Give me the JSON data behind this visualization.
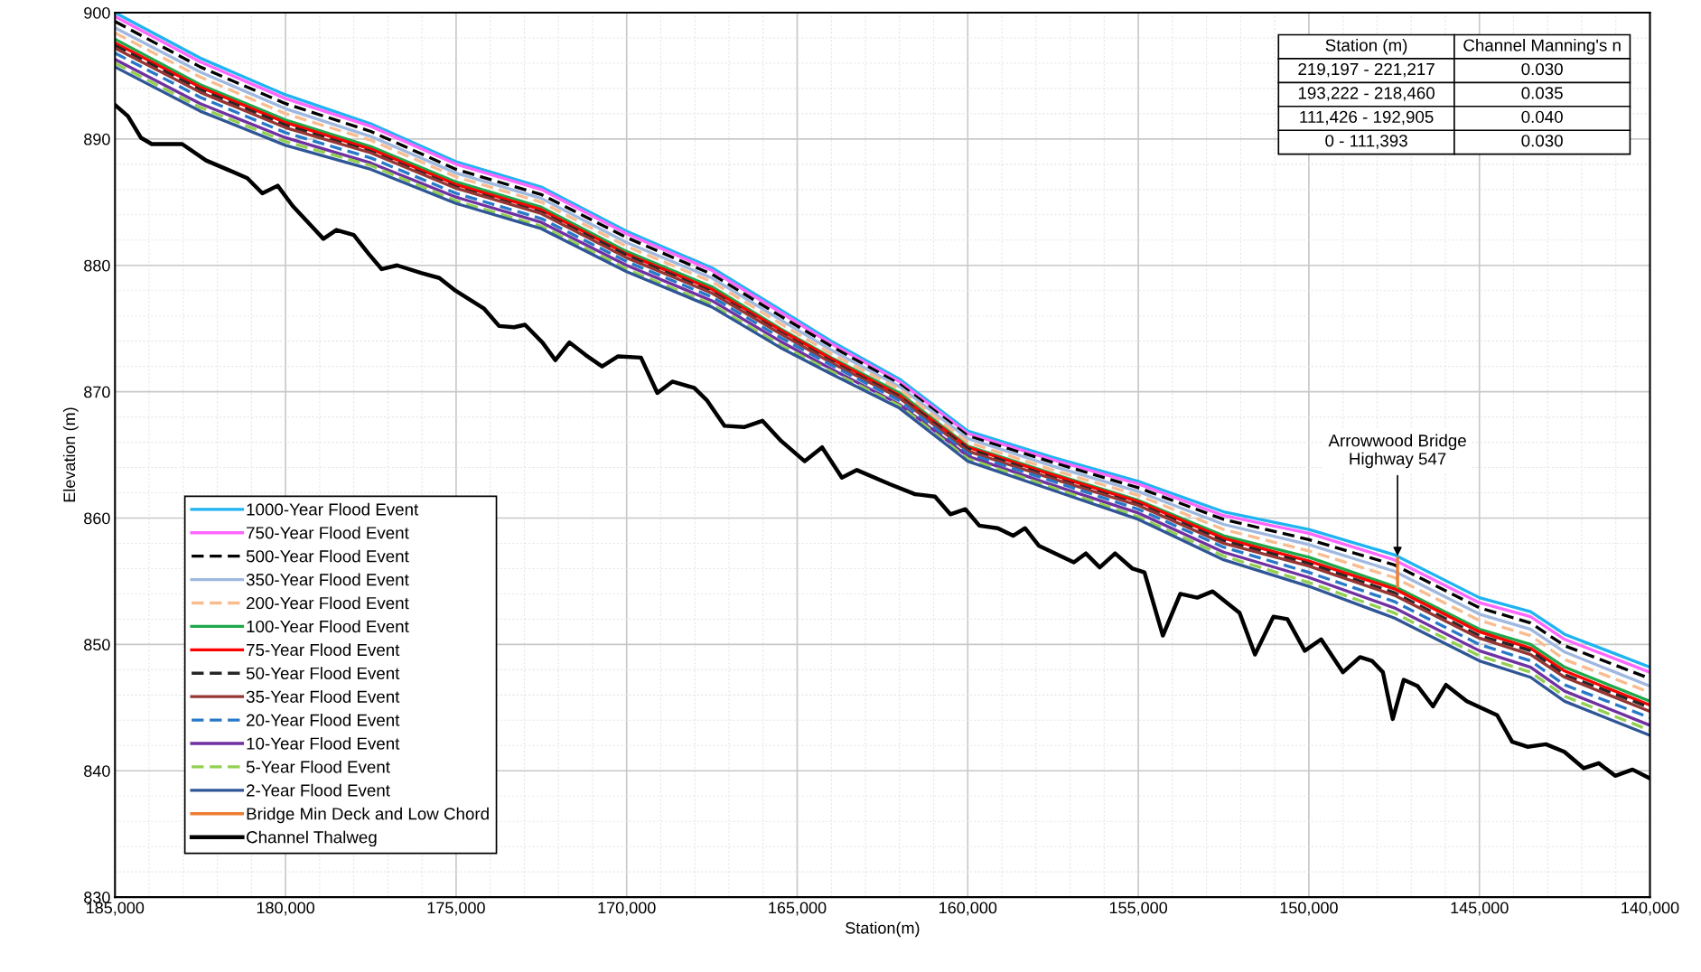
{
  "chart_data": {
    "type": "line",
    "xlabel": "Station(m)",
    "ylabel": "Elevation (m)",
    "xlim": [
      185000,
      140000
    ],
    "ylim": [
      830,
      900
    ],
    "xticks": [
      {
        "value": 185000,
        "label": "185,000"
      },
      {
        "value": 180000,
        "label": "180,000"
      },
      {
        "value": 175000,
        "label": "175,000"
      },
      {
        "value": 170000,
        "label": "170,000"
      },
      {
        "value": 165000,
        "label": "165,000"
      },
      {
        "value": 160000,
        "label": "160,000"
      },
      {
        "value": 155000,
        "label": "155,000"
      },
      {
        "value": 150000,
        "label": "150,000"
      },
      {
        "value": 145000,
        "label": "145,000"
      },
      {
        "value": 140000,
        "label": "140,000"
      }
    ],
    "yticks": [
      830,
      840,
      850,
      860,
      870,
      880,
      890,
      900
    ],
    "grid": true,
    "legend": "left",
    "x": [
      185000,
      182500,
      180000,
      177500,
      175000,
      172500,
      170000,
      167500,
      165500,
      164000,
      162000,
      160000,
      157500,
      155000,
      152500,
      150000,
      147500,
      145000,
      143500,
      142500,
      140000
    ],
    "series": [
      {
        "name": "1000-Year Flood Event",
        "color": "#1fb4f0",
        "line_style": "solid",
        "values": [
          900.0,
          896.4,
          893.5,
          891.2,
          888.2,
          886.2,
          882.7,
          879.8,
          876.5,
          874.0,
          871.0,
          866.9,
          864.8,
          862.9,
          860.5,
          859.1,
          857.1,
          853.7,
          852.6,
          850.8,
          848.2
        ]
      },
      {
        "name": "750-Year Flood Event",
        "color": "#ff66ff",
        "line_style": "solid",
        "values": [
          899.7,
          896.1,
          893.2,
          891.0,
          888.0,
          886.0,
          882.5,
          879.6,
          876.3,
          873.8,
          870.8,
          866.7,
          864.6,
          862.7,
          860.2,
          858.8,
          856.7,
          853.3,
          852.2,
          850.4,
          847.8
        ]
      },
      {
        "name": "500-Year Flood Event",
        "color": "#000000",
        "line_style": "dashed",
        "values": [
          899.3,
          895.7,
          892.8,
          890.6,
          887.6,
          885.6,
          882.2,
          879.3,
          876.0,
          873.6,
          870.6,
          866.5,
          864.4,
          862.4,
          859.9,
          858.3,
          856.3,
          852.9,
          851.7,
          849.9,
          847.3
        ]
      },
      {
        "name": "350-Year Flood Event",
        "color": "#9fb8e0",
        "line_style": "solid",
        "values": [
          898.8,
          895.3,
          892.4,
          890.2,
          887.3,
          885.3,
          881.8,
          879.0,
          875.7,
          873.3,
          870.4,
          866.3,
          864.1,
          862.1,
          859.5,
          857.9,
          855.8,
          852.4,
          851.2,
          849.4,
          846.7
        ]
      },
      {
        "name": "200-Year Flood Event",
        "color": "#f8bc8f",
        "line_style": "dashed",
        "values": [
          898.4,
          894.9,
          892.0,
          889.9,
          887.0,
          885.0,
          881.5,
          878.7,
          875.4,
          873.0,
          870.2,
          866.0,
          863.8,
          861.8,
          859.1,
          857.4,
          855.3,
          851.9,
          850.7,
          848.8,
          846.2
        ]
      },
      {
        "name": "100-Year Flood Event",
        "color": "#1fa84a",
        "line_style": "solid",
        "values": [
          897.9,
          894.3,
          891.5,
          889.4,
          886.6,
          884.6,
          881.1,
          878.3,
          875.0,
          872.7,
          869.9,
          865.7,
          863.5,
          861.4,
          858.6,
          856.9,
          854.6,
          851.2,
          850.0,
          848.2,
          845.5
        ]
      },
      {
        "name": "75-Year Flood Event",
        "color": "#ff0000",
        "line_style": "solid",
        "values": [
          897.6,
          894.1,
          891.3,
          889.2,
          886.4,
          884.4,
          880.9,
          878.1,
          874.9,
          872.6,
          869.7,
          865.6,
          863.4,
          861.3,
          858.4,
          856.6,
          854.4,
          851.0,
          849.7,
          847.9,
          845.2
        ]
      },
      {
        "name": "50-Year Flood Event",
        "color": "#262626",
        "line_style": "dashed",
        "values": [
          897.4,
          893.9,
          891.1,
          889.0,
          886.2,
          884.2,
          880.8,
          877.9,
          874.7,
          872.4,
          869.6,
          865.5,
          863.2,
          861.1,
          858.2,
          856.4,
          854.1,
          850.7,
          849.5,
          847.6,
          845.0
        ]
      },
      {
        "name": "35-Year Flood Event",
        "color": "#943634",
        "line_style": "solid",
        "values": [
          897.2,
          893.7,
          890.9,
          888.9,
          886.1,
          884.1,
          880.6,
          877.8,
          874.6,
          872.3,
          869.5,
          865.3,
          863.1,
          861.0,
          858.0,
          856.2,
          853.9,
          850.5,
          849.2,
          847.4,
          844.7
        ]
      },
      {
        "name": "20-Year Flood Event",
        "color": "#2878c8",
        "line_style": "dashed",
        "values": [
          896.8,
          893.3,
          890.5,
          888.5,
          885.7,
          883.7,
          880.3,
          877.5,
          874.3,
          872.1,
          869.3,
          865.1,
          862.9,
          860.7,
          857.7,
          855.7,
          853.4,
          850.0,
          848.7,
          846.8,
          844.2
        ]
      },
      {
        "name": "10-Year Flood Event",
        "color": "#7030a0",
        "line_style": "solid",
        "values": [
          896.3,
          892.8,
          890.1,
          888.1,
          885.4,
          883.4,
          880.0,
          877.2,
          874.0,
          871.8,
          869.0,
          864.9,
          862.6,
          860.4,
          857.3,
          855.3,
          852.9,
          849.5,
          848.2,
          846.3,
          843.6
        ]
      },
      {
        "name": "5-Year Flood Event",
        "color": "#92d050",
        "line_style": "dashed",
        "values": [
          896.0,
          892.5,
          889.8,
          887.9,
          885.1,
          883.1,
          879.7,
          876.9,
          873.7,
          871.6,
          868.9,
          864.7,
          862.4,
          860.1,
          857.0,
          854.9,
          852.5,
          849.1,
          847.8,
          845.9,
          843.2
        ]
      },
      {
        "name": "2-Year Flood Event",
        "color": "#2f5597",
        "line_style": "solid",
        "values": [
          895.7,
          892.2,
          889.5,
          887.6,
          884.9,
          882.9,
          879.5,
          876.7,
          873.5,
          871.4,
          868.7,
          864.5,
          862.2,
          859.9,
          856.7,
          854.6,
          852.1,
          848.7,
          847.4,
          845.5,
          842.8
        ]
      },
      {
        "name": "Bridge Min Deck and Low Chord",
        "color": "#ed7d31",
        "line_style": "solid",
        "x": [
          147400,
          147400
        ],
        "values": [
          856.8,
          854.6
        ]
      },
      {
        "name": "Channel Thalweg",
        "color": "#000000",
        "line_style": "solid",
        "x": [
          185000,
          184620,
          184240,
          183920,
          183030,
          182330,
          181630,
          181120,
          180680,
          180230,
          179790,
          178890,
          178510,
          178000,
          177560,
          177180,
          176730,
          176030,
          175490,
          175020,
          174190,
          173740,
          173300,
          172980,
          172470,
          172090,
          171680,
          171200,
          170720,
          170250,
          169580,
          169100,
          168660,
          168020,
          167640,
          167130,
          166560,
          166020,
          165470,
          164780,
          164270,
          163690,
          163250,
          162300,
          161560,
          160960,
          160510,
          160070,
          159660,
          159120,
          158670,
          158320,
          157910,
          156890,
          156540,
          156130,
          155680,
          155170,
          154820,
          154280,
          153770,
          153270,
          152820,
          152030,
          151580,
          151040,
          150630,
          150120,
          149640,
          149000,
          148500,
          148150,
          147830,
          147540,
          147220,
          146810,
          146360,
          145980,
          145370,
          144480,
          144040,
          143590,
          143050,
          142510,
          141940,
          141500,
          141020,
          140510,
          140000
        ],
        "values": [
          892.7,
          891.8,
          890.1,
          889.6,
          889.6,
          888.3,
          887.5,
          886.9,
          885.7,
          886.3,
          884.7,
          882.1,
          882.8,
          882.4,
          880.9,
          879.7,
          880.0,
          879.4,
          879.0,
          878.0,
          876.6,
          875.2,
          875.1,
          875.3,
          873.9,
          872.5,
          873.9,
          872.9,
          872.0,
          872.8,
          872.7,
          869.9,
          870.8,
          870.3,
          869.3,
          867.3,
          867.2,
          867.7,
          866.1,
          864.5,
          865.6,
          863.2,
          863.8,
          862.7,
          861.9,
          861.7,
          860.3,
          860.7,
          859.4,
          859.2,
          858.6,
          859.2,
          857.8,
          856.5,
          857.2,
          856.1,
          857.2,
          856.0,
          855.7,
          850.7,
          854.0,
          853.7,
          854.2,
          852.5,
          849.2,
          852.2,
          852.0,
          849.5,
          850.4,
          847.8,
          849.0,
          848.7,
          847.8,
          844.1,
          847.2,
          846.7,
          845.1,
          846.8,
          845.5,
          844.4,
          842.3,
          841.9,
          842.1,
          841.5,
          840.2,
          840.6,
          839.6,
          840.1,
          839.4
        ]
      }
    ],
    "annotations": [
      "Station (m)",
      "Channel Manning's n",
      "219,197 - 221,217",
      "0.030",
      "193,222 - 218,460",
      "0.035",
      "111,426 - 192,905",
      "0.040",
      "0 - 111,393",
      "0.030",
      {
        "text": "Arrowwood Bridge\nHighway 547",
        "x": 147400,
        "y": 857.0
      }
    ]
  }
}
